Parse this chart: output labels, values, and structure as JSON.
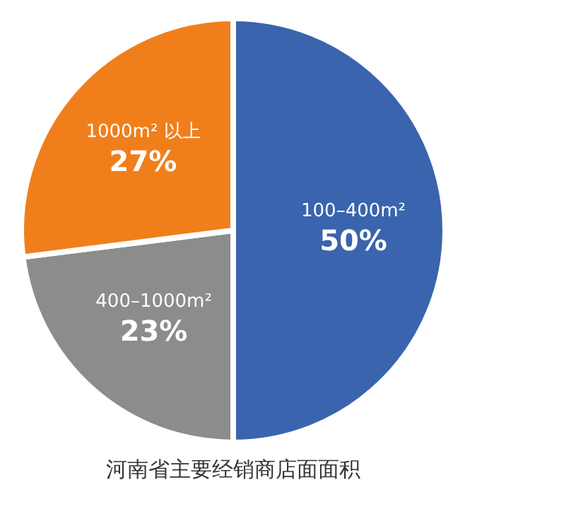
{
  "chart_data": {
    "type": "pie",
    "title": "河南省主要经销商店面面积",
    "categories": [
      "100–400m²",
      "400–1000m²",
      "1000m² 以上"
    ],
    "values": [
      50,
      23,
      27
    ],
    "value_labels": [
      "50%",
      "23%",
      "27%"
    ],
    "colors": [
      "#3a64ad",
      "#8c8c8c",
      "#f07f1b"
    ],
    "legend": false
  }
}
